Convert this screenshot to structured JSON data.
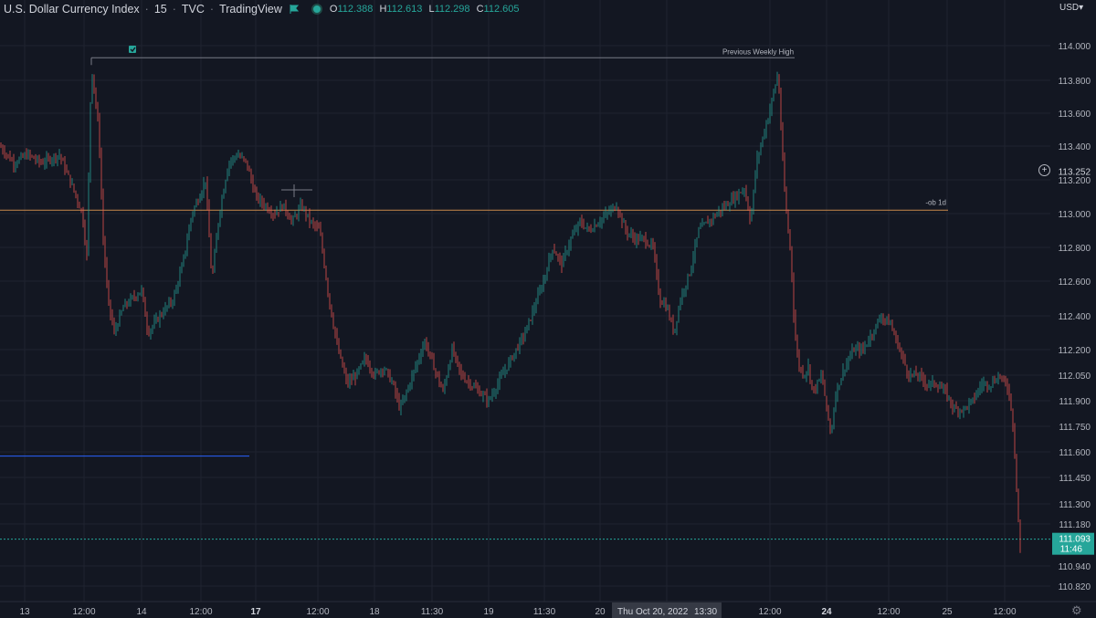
{
  "header": {
    "symbol": "U.S. Dollar Currency Index",
    "interval": "15",
    "exchange": "TVC",
    "source": "TradingView",
    "o_label": "O",
    "o_value": "112.388",
    "h_label": "H",
    "h_value": "112.613",
    "l_label": "L",
    "l_value": "112.298",
    "c_label": "C",
    "c_value": "112.605"
  },
  "currency": "USD",
  "price_axis": {
    "labels": [
      "114.000",
      "113.800",
      "113.600",
      "113.400",
      "113.200",
      "113.000",
      "112.800",
      "112.600",
      "112.400",
      "112.200",
      "112.050",
      "111.900",
      "111.750",
      "111.600",
      "111.450",
      "111.300",
      "111.180",
      "110.940",
      "110.820"
    ],
    "crosshair_price": "113.252",
    "last_price": "111.093",
    "countdown": "11:46"
  },
  "time_axis": {
    "labels": [
      {
        "text": "13",
        "bold": false
      },
      {
        "text": "12:00",
        "bold": false
      },
      {
        "text": "14",
        "bold": false
      },
      {
        "text": "12:00",
        "bold": false
      },
      {
        "text": "17",
        "bold": true
      },
      {
        "text": "12:00",
        "bold": false
      },
      {
        "text": "18",
        "bold": false
      },
      {
        "text": "11:30",
        "bold": false
      },
      {
        "text": "19",
        "bold": false
      },
      {
        "text": "11:30",
        "bold": false
      },
      {
        "text": "20",
        "bold": false
      },
      {
        "text": "13:30",
        "bold": false
      },
      {
        "text": "12:00",
        "bold": false
      },
      {
        "text": "24",
        "bold": true
      },
      {
        "text": "12:00",
        "bold": false
      },
      {
        "text": "25",
        "bold": false
      },
      {
        "text": "12:00",
        "bold": false
      }
    ],
    "crosshair_date": "Thu Oct 20, 2022"
  },
  "annotations": {
    "weekly_high_label": "Previous Weekly High",
    "ob_label": "-ob 1d"
  },
  "colors": {
    "up": "#26a69a",
    "down": "#ef5350",
    "bg": "#131722",
    "ob_line": "#c8884a",
    "blue_line": "#2962ff"
  },
  "chart_data": {
    "type": "candlestick",
    "title": "U.S. Dollar Currency Index",
    "y_unit": "USD",
    "ylim": [
      110.75,
      114.1
    ],
    "grid": true,
    "series": [
      {
        "close_path": [
          [
            0,
            113.4
          ],
          [
            15,
            113.3
          ],
          [
            30,
            113.35
          ],
          [
            45,
            113.3
          ],
          [
            65,
            113.35
          ],
          [
            80,
            113.15
          ],
          [
            90,
            113.0
          ],
          [
            95,
            112.75
          ],
          [
            100,
            113.9
          ],
          [
            108,
            113.5
          ],
          [
            113,
            112.85
          ],
          [
            118,
            112.5
          ],
          [
            125,
            112.3
          ],
          [
            135,
            112.45
          ],
          [
            145,
            112.5
          ],
          [
            155,
            112.55
          ],
          [
            162,
            112.3
          ],
          [
            175,
            112.4
          ],
          [
            190,
            112.5
          ],
          [
            200,
            112.7
          ],
          [
            210,
            113.0
          ],
          [
            218,
            113.1
          ],
          [
            225,
            113.2
          ],
          [
            232,
            112.6
          ],
          [
            240,
            113.0
          ],
          [
            250,
            113.3
          ],
          [
            260,
            113.35
          ],
          [
            270,
            113.3
          ],
          [
            280,
            113.1
          ],
          [
            290,
            113.05
          ],
          [
            300,
            113.0
          ],
          [
            310,
            113.05
          ],
          [
            320,
            112.95
          ],
          [
            330,
            113.05
          ],
          [
            340,
            112.95
          ],
          [
            350,
            112.9
          ],
          [
            360,
            112.5
          ],
          [
            370,
            112.2
          ],
          [
            380,
            112.0
          ],
          [
            390,
            112.05
          ],
          [
            400,
            112.15
          ],
          [
            410,
            112.05
          ],
          [
            420,
            112.1
          ],
          [
            430,
            112.0
          ],
          [
            438,
            111.85
          ],
          [
            445,
            111.95
          ],
          [
            455,
            112.1
          ],
          [
            465,
            112.25
          ],
          [
            475,
            112.1
          ],
          [
            485,
            111.95
          ],
          [
            495,
            112.2
          ],
          [
            505,
            112.05
          ],
          [
            515,
            112.0
          ],
          [
            525,
            111.95
          ],
          [
            535,
            111.9
          ],
          [
            545,
            112.0
          ],
          [
            555,
            112.1
          ],
          [
            565,
            112.2
          ],
          [
            575,
            112.3
          ],
          [
            585,
            112.45
          ],
          [
            595,
            112.6
          ],
          [
            605,
            112.8
          ],
          [
            615,
            112.7
          ],
          [
            625,
            112.85
          ],
          [
            635,
            112.95
          ],
          [
            645,
            112.9
          ],
          [
            655,
            112.95
          ],
          [
            665,
            113.0
          ],
          [
            675,
            113.05
          ],
          [
            685,
            112.9
          ],
          [
            695,
            112.85
          ],
          [
            705,
            112.85
          ],
          [
            715,
            112.8
          ],
          [
            722,
            112.5
          ],
          [
            730,
            112.45
          ],
          [
            738,
            112.3
          ],
          [
            745,
            112.5
          ],
          [
            755,
            112.65
          ],
          [
            765,
            112.9
          ],
          [
            775,
            112.95
          ],
          [
            785,
            113.0
          ],
          [
            795,
            113.05
          ],
          [
            805,
            113.1
          ],
          [
            815,
            113.15
          ],
          [
            822,
            112.95
          ],
          [
            828,
            113.3
          ],
          [
            835,
            113.45
          ],
          [
            842,
            113.6
          ],
          [
            848,
            113.75
          ],
          [
            852,
            113.85
          ],
          [
            856,
            113.4
          ],
          [
            860,
            113.05
          ],
          [
            866,
            112.75
          ],
          [
            870,
            112.3
          ],
          [
            875,
            112.1
          ],
          [
            880,
            112.05
          ],
          [
            885,
            112.1
          ],
          [
            890,
            111.95
          ],
          [
            900,
            112.05
          ],
          [
            905,
            111.85
          ],
          [
            910,
            111.7
          ],
          [
            915,
            111.95
          ],
          [
            925,
            112.1
          ],
          [
            935,
            112.2
          ],
          [
            945,
            112.2
          ],
          [
            955,
            112.3
          ],
          [
            965,
            112.4
          ],
          [
            975,
            112.35
          ],
          [
            985,
            112.2
          ],
          [
            995,
            112.05
          ],
          [
            1005,
            112.05
          ],
          [
            1015,
            112.0
          ],
          [
            1025,
            112.0
          ],
          [
            1035,
            111.95
          ],
          [
            1045,
            111.85
          ],
          [
            1055,
            111.85
          ],
          [
            1065,
            111.9
          ],
          [
            1075,
            112.0
          ],
          [
            1085,
            112.0
          ],
          [
            1095,
            112.05
          ],
          [
            1105,
            111.95
          ],
          [
            1110,
            111.7
          ],
          [
            1113,
            111.4
          ],
          [
            1116,
            111.1
          ],
          [
            1118,
            110.95
          ]
        ]
      }
    ],
    "levels": [
      {
        "label": "Previous Weekly High",
        "price": 113.93,
        "x_range": [
          100,
          870
        ]
      },
      {
        "label": "-ob 1d",
        "price": 113.02,
        "x_range": [
          0,
          1038
        ]
      },
      {
        "label": "",
        "price": 111.575,
        "x_range": [
          0,
          273
        ]
      },
      {
        "label": "",
        "price": 111.093,
        "x_range": [
          0,
          1150
        ]
      }
    ]
  }
}
